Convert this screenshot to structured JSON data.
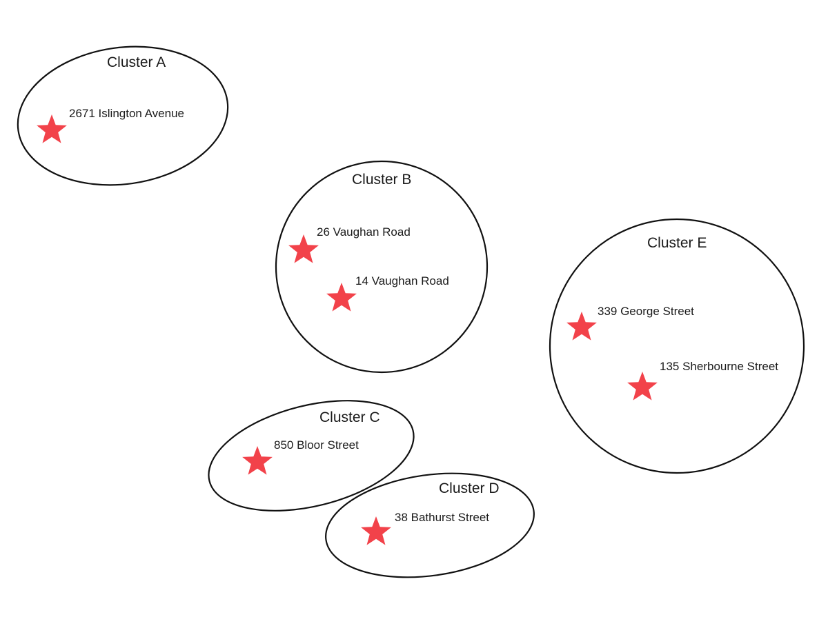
{
  "colors": {
    "star": "#f2424a",
    "outline": "#111111",
    "text": "#1a1a1a"
  },
  "marker_icon": "star-icon",
  "clusters": {
    "a": {
      "label": "Cluster A",
      "sites": [
        {
          "label": "2671 Islington Avenue"
        }
      ]
    },
    "b": {
      "label": "Cluster B",
      "sites": [
        {
          "label": "26 Vaughan Road"
        },
        {
          "label": "14 Vaughan Road"
        }
      ]
    },
    "c": {
      "label": "Cluster C",
      "sites": [
        {
          "label": "850 Bloor Street"
        }
      ]
    },
    "d": {
      "label": "Cluster D",
      "sites": [
        {
          "label": "38 Bathurst Street"
        }
      ]
    },
    "e": {
      "label": "Cluster E",
      "sites": [
        {
          "label": "339 George Street"
        },
        {
          "label": "135 Sherbourne Street"
        }
      ]
    }
  }
}
